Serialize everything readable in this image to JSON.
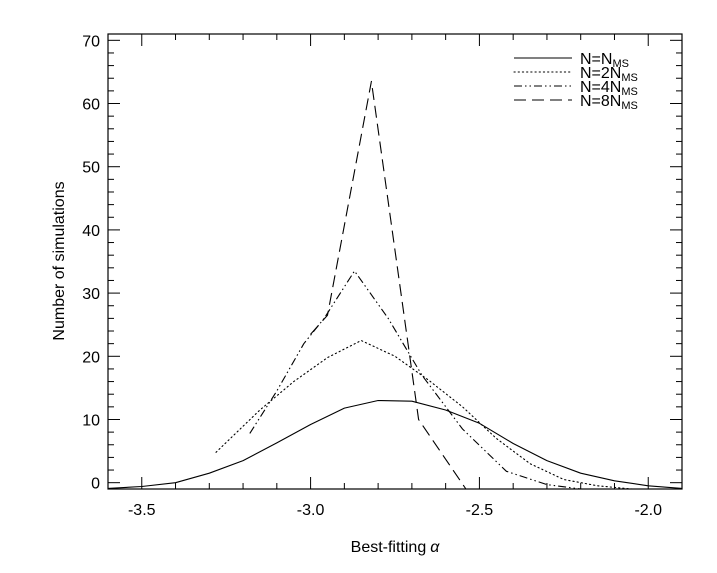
{
  "chart_data": {
    "type": "line",
    "title": "",
    "xlabel": "Best-fitting",
    "xlabel_symbol": "α",
    "ylabel": "Number of simulations",
    "xlim": [
      -3.6,
      -1.9
    ],
    "ylim": [
      -1,
      71
    ],
    "xticks": [
      -3.5,
      -3.0,
      -2.5,
      -2.0
    ],
    "xtick_labels": [
      "-3.5",
      "-3.0",
      "-2.5",
      "-2.0"
    ],
    "yticks": [
      0,
      10,
      20,
      30,
      40,
      50,
      60,
      70
    ],
    "ytick_labels": [
      "0",
      "10",
      "20",
      "30",
      "40",
      "50",
      "60",
      "70"
    ],
    "grid": false,
    "legend_position": "top-right",
    "series": [
      {
        "name": "N=N",
        "name_sub": "MS",
        "style": "solid",
        "x": [
          -3.6,
          -3.5,
          -3.4,
          -3.3,
          -3.2,
          -3.1,
          -3.0,
          -2.9,
          -2.8,
          -2.7,
          -2.6,
          -2.5,
          -2.4,
          -2.3,
          -2.2,
          -2.1,
          -2.0,
          -1.9
        ],
        "y": [
          -0.9,
          -0.6,
          0.0,
          1.5,
          3.5,
          6.3,
          9.2,
          11.8,
          13.0,
          12.9,
          11.5,
          9.4,
          6.2,
          3.5,
          1.5,
          0.3,
          -0.5,
          -0.9
        ]
      },
      {
        "name": "N=2N",
        "name_sub": "MS",
        "style": "dotted",
        "x": [
          -3.28,
          -3.15,
          -3.05,
          -2.95,
          -2.85,
          -2.75,
          -2.65,
          -2.55,
          -2.45,
          -2.35,
          -2.25,
          -2.15,
          -2.05
        ],
        "y": [
          4.8,
          11.5,
          16.0,
          19.8,
          22.5,
          20.0,
          16.2,
          12.0,
          7.0,
          3.0,
          0.5,
          -0.5,
          -1.0
        ]
      },
      {
        "name": "N=4N",
        "name_sub": "MS",
        "style": "dash-dot-dot",
        "x": [
          -3.18,
          -3.1,
          -3.02,
          -2.96,
          -2.87,
          -2.77,
          -2.67,
          -2.55,
          -2.42,
          -2.3,
          -2.2
        ],
        "y": [
          7.8,
          14.5,
          22.0,
          26.0,
          33.5,
          26.0,
          17.0,
          8.5,
          1.8,
          -0.3,
          -1.0
        ]
      },
      {
        "name": "N=8N",
        "name_sub": "MS",
        "style": "dashed",
        "x": [
          -3.0,
          -2.95,
          -2.82,
          -2.68,
          -2.54
        ],
        "y": [
          23.5,
          26.5,
          63.5,
          10.0,
          -1.0
        ]
      }
    ]
  }
}
